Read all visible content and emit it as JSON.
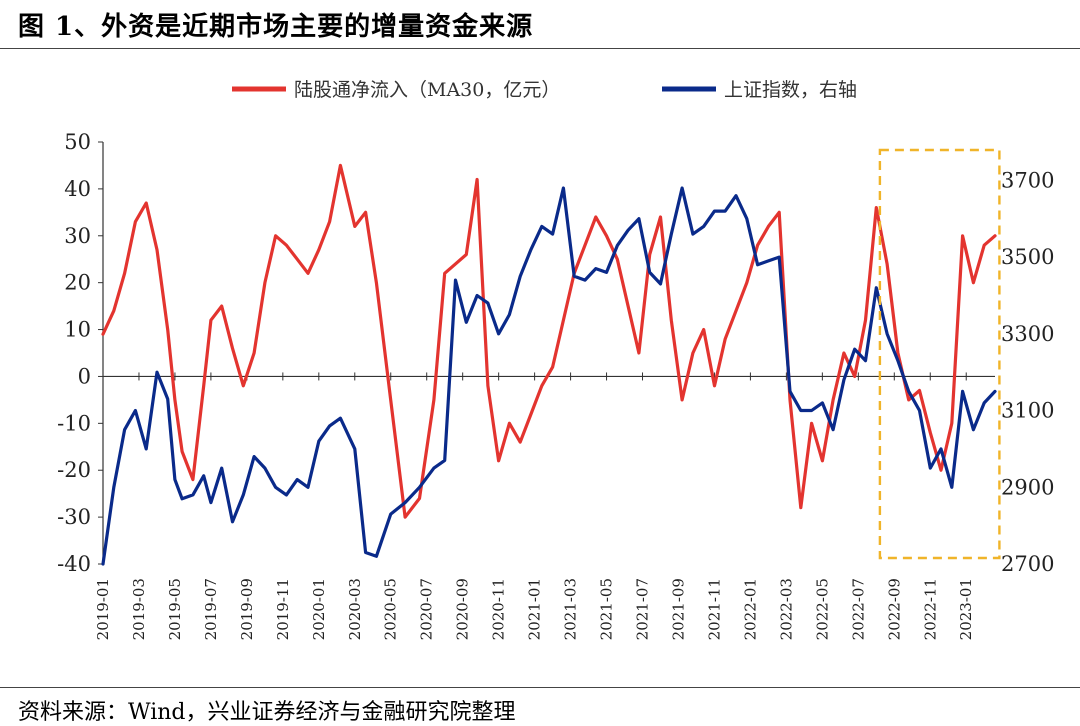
{
  "title": "图 1、外资是近期市场主要的增量资金来源",
  "source": "资料来源：Wind，兴业证券经济与金融研究院整理",
  "colors": {
    "red": "#e3342f",
    "blue": "#0a2a8a",
    "highlight": "#f0b429",
    "axis": "#333333"
  },
  "chart_data": {
    "type": "line",
    "legend": [
      "陆股通净流入（MA30，亿元）",
      "上证指数，右轴"
    ],
    "left_axis": {
      "range": [
        -40,
        50
      ],
      "ticks": [
        "50",
        "40",
        "30",
        "20",
        "10",
        "0",
        "-10",
        "-20",
        "-30",
        "-40"
      ]
    },
    "right_axis": {
      "range": [
        2700,
        3800
      ],
      "ticks": [
        "3700",
        "3500",
        "3300",
        "3100",
        "2900",
        "2700"
      ]
    },
    "x_ticks": [
      "2019-01",
      "2019-03",
      "2019-05",
      "2019-07",
      "2019-09",
      "2019-11",
      "2020-01",
      "2020-03",
      "2020-05",
      "2020-07",
      "2020-09",
      "2020-11",
      "2021-01",
      "2021-03",
      "2021-05",
      "2021-07",
      "2021-09",
      "2021-11",
      "2022-01",
      "2022-03",
      "2022-05",
      "2022-07",
      "2022-09",
      "2022-11",
      "2023-01"
    ],
    "x_range": [
      0,
      24.8
    ],
    "highlight_range": [
      21.6,
      24.7
    ],
    "series": [
      {
        "name": "陆股通净流入（MA30，亿元）",
        "axis": "left",
        "x": [
          0,
          0.3,
          0.6,
          0.9,
          1.2,
          1.5,
          1.8,
          2.0,
          2.2,
          2.5,
          2.8,
          3.0,
          3.3,
          3.6,
          3.9,
          4.2,
          4.5,
          4.8,
          5.1,
          5.4,
          5.7,
          6.0,
          6.3,
          6.6,
          7.0,
          7.3,
          7.6,
          8.0,
          8.4,
          8.8,
          9.2,
          9.5,
          9.8,
          10.1,
          10.4,
          10.7,
          11.0,
          11.3,
          11.6,
          11.9,
          12.2,
          12.5,
          12.8,
          13.1,
          13.4,
          13.7,
          14.0,
          14.3,
          14.6,
          14.9,
          15.2,
          15.5,
          15.8,
          16.1,
          16.4,
          16.7,
          17.0,
          17.3,
          17.6,
          17.9,
          18.2,
          18.5,
          18.8,
          19.1,
          19.4,
          19.7,
          20.0,
          20.3,
          20.6,
          20.9,
          21.2,
          21.5,
          21.8,
          22.1,
          22.4,
          22.7,
          23.0,
          23.3,
          23.6,
          23.9,
          24.2,
          24.5,
          24.8
        ],
        "values": [
          9,
          14,
          22,
          33,
          37,
          27,
          10,
          -5,
          -16,
          -22,
          -2,
          12,
          15,
          6,
          -2,
          5,
          20,
          30,
          28,
          25,
          22,
          27,
          33,
          45,
          32,
          35,
          20,
          -5,
          -30,
          -26,
          -5,
          22,
          24,
          26,
          42,
          -2,
          -18,
          -10,
          -14,
          -8,
          -2,
          2,
          12,
          22,
          28,
          34,
          30,
          25,
          15,
          5,
          26,
          34,
          12,
          -5,
          5,
          10,
          -2,
          8,
          14,
          20,
          28,
          32,
          35,
          -5,
          -28,
          -10,
          -18,
          -5,
          5,
          0,
          12,
          36,
          24,
          5,
          -5,
          -3,
          -12,
          -20,
          -10,
          30,
          20,
          28,
          30
        ]
      },
      {
        "name": "上证指数，右轴",
        "axis": "right",
        "x": [
          0,
          0.3,
          0.6,
          0.9,
          1.2,
          1.5,
          1.8,
          2.0,
          2.2,
          2.5,
          2.8,
          3.0,
          3.3,
          3.6,
          3.9,
          4.2,
          4.5,
          4.8,
          5.1,
          5.4,
          5.7,
          6.0,
          6.3,
          6.6,
          7.0,
          7.3,
          7.6,
          8.0,
          8.4,
          8.8,
          9.2,
          9.5,
          9.8,
          10.1,
          10.4,
          10.7,
          11.0,
          11.3,
          11.6,
          11.9,
          12.2,
          12.5,
          12.8,
          13.1,
          13.4,
          13.7,
          14.0,
          14.3,
          14.6,
          14.9,
          15.2,
          15.5,
          15.8,
          16.1,
          16.4,
          16.7,
          17.0,
          17.3,
          17.6,
          17.9,
          18.2,
          18.5,
          18.8,
          19.1,
          19.4,
          19.7,
          20.0,
          20.3,
          20.6,
          20.9,
          21.2,
          21.5,
          21.8,
          22.1,
          22.4,
          22.7,
          23.0,
          23.3,
          23.6,
          23.9,
          24.2,
          24.5,
          24.8
        ],
        "values": [
          2700,
          2900,
          3050,
          3100,
          3000,
          3200,
          3130,
          2920,
          2870,
          2880,
          2930,
          2860,
          2950,
          2810,
          2880,
          2980,
          2950,
          2900,
          2880,
          2920,
          2900,
          3020,
          3060,
          3080,
          3000,
          2730,
          2720,
          2830,
          2860,
          2900,
          2950,
          2970,
          3440,
          3330,
          3400,
          3380,
          3300,
          3350,
          3450,
          3520,
          3580,
          3560,
          3680,
          3450,
          3440,
          3470,
          3460,
          3530,
          3570,
          3600,
          3460,
          3430,
          3560,
          3680,
          3560,
          3580,
          3620,
          3620,
          3660,
          3600,
          3480,
          3490,
          3500,
          3150,
          3100,
          3100,
          3120,
          3050,
          3180,
          3260,
          3230,
          3420,
          3300,
          3230,
          3150,
          3100,
          2950,
          3000,
          2900,
          3150,
          3050,
          3120,
          3150
        ]
      }
    ]
  }
}
